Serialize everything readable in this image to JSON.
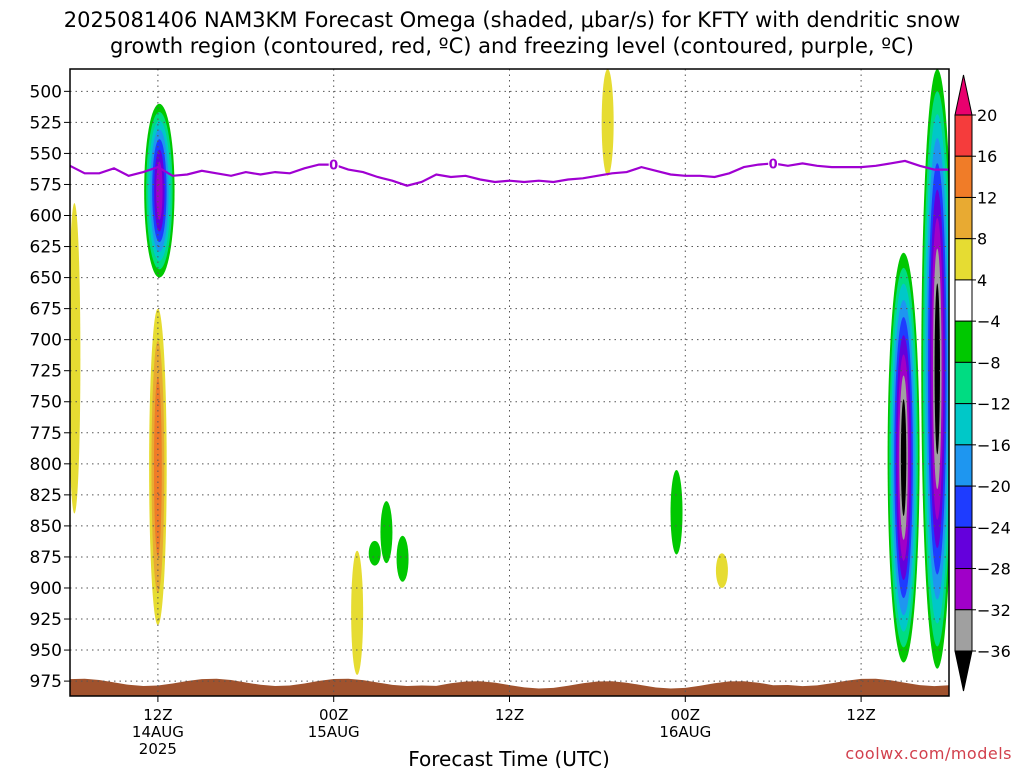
{
  "title_line1": "2025081406 NAM3KM Forecast Omega (shaded, μbar/s) for KFTY with dendritic snow",
  "title_line2": "growth region (contoured, red, ºC) and freezing level (contoured, purple, ºC)",
  "credit": "coolwx.com/models",
  "chart_data": {
    "type": "heatmap",
    "title": "2025081406 NAM3KM Forecast Omega (shaded, μbar/s) for KFTY with dendritic snow growth region (contoured, red, ºC) and freezing level (contoured, purple, ºC)",
    "xlabel": "Forecast Time (UTC)",
    "ylabel": "",
    "y_axis": {
      "reversed": true,
      "ylim": [
        987,
        482
      ],
      "ticks": [
        500,
        525,
        550,
        575,
        600,
        625,
        650,
        675,
        700,
        725,
        750,
        775,
        800,
        825,
        850,
        875,
        900,
        925,
        950,
        975
      ]
    },
    "x_axis": {
      "range_hours": [
        6,
        66
      ],
      "ticks": [
        {
          "hour": 12,
          "label": [
            "12Z",
            "14AUG",
            "2025"
          ]
        },
        {
          "hour": 24,
          "label": [
            "00Z",
            "15AUG"
          ]
        },
        {
          "hour": 36,
          "label": [
            "12Z"
          ]
        },
        {
          "hour": 48,
          "label": [
            "00Z",
            "16AUG"
          ]
        },
        {
          "hour": 60,
          "label": [
            "12Z"
          ]
        }
      ]
    },
    "grid": true,
    "colorbar": {
      "labels": [
        "20",
        "16",
        "12",
        "8",
        "4",
        "−4",
        "−8",
        "−12",
        "−16",
        "−20",
        "−24",
        "−28",
        "−32",
        "−36"
      ],
      "colors": [
        "#e8006e",
        "#f53c3c",
        "#f07c28",
        "#e8aa32",
        "#e6dc32",
        "#ffffff",
        "#00c800",
        "#00dc82",
        "#00c8c8",
        "#1e96f0",
        "#1e3cff",
        "#6400dc",
        "#a000c8",
        "#a0a0a0",
        "#000000"
      ]
    },
    "freezing_level": {
      "label": "0",
      "color": "#a000d2",
      "points": [
        [
          6,
          560
        ],
        [
          7,
          566
        ],
        [
          8,
          566
        ],
        [
          9,
          562
        ],
        [
          10,
          568
        ],
        [
          11,
          565
        ],
        [
          12,
          561
        ],
        [
          13,
          568
        ],
        [
          14,
          567
        ],
        [
          15,
          564
        ],
        [
          16,
          566
        ],
        [
          17,
          568
        ],
        [
          18,
          565
        ],
        [
          19,
          567
        ],
        [
          20,
          565
        ],
        [
          21,
          566
        ],
        [
          22,
          562
        ],
        [
          23,
          559
        ],
        [
          24,
          559
        ],
        [
          25,
          563
        ],
        [
          26,
          565
        ],
        [
          27,
          569
        ],
        [
          28,
          572
        ],
        [
          29,
          576
        ],
        [
          30,
          573
        ],
        [
          31,
          567
        ],
        [
          32,
          569
        ],
        [
          33,
          568
        ],
        [
          34,
          571
        ],
        [
          35,
          573
        ],
        [
          36,
          572
        ],
        [
          37,
          573
        ],
        [
          38,
          572
        ],
        [
          39,
          573
        ],
        [
          40,
          571
        ],
        [
          41,
          570
        ],
        [
          42,
          568
        ],
        [
          43,
          566
        ],
        [
          44,
          565
        ],
        [
          45,
          561
        ],
        [
          46,
          564
        ],
        [
          47,
          567
        ],
        [
          48,
          568
        ],
        [
          49,
          568
        ],
        [
          50,
          569
        ],
        [
          51,
          566
        ],
        [
          52,
          561
        ],
        [
          53,
          559
        ],
        [
          54,
          558
        ],
        [
          55,
          560
        ],
        [
          56,
          558
        ],
        [
          57,
          560
        ],
        [
          58,
          561
        ],
        [
          59,
          561
        ],
        [
          60,
          561
        ],
        [
          61,
          560
        ],
        [
          62,
          558
        ],
        [
          63,
          556
        ],
        [
          64,
          560
        ],
        [
          65,
          563
        ],
        [
          66,
          563
        ]
      ]
    },
    "omega_features": [
      {
        "value": -36,
        "hour": 12.1,
        "p_top": 510,
        "p_bottom": 650,
        "peak": -28
      },
      {
        "value": 16,
        "hour": 12.0,
        "p_top": 675,
        "p_bottom": 930,
        "peak": 14
      },
      {
        "value": 6,
        "hour": 6.3,
        "p_top": 590,
        "p_bottom": 840,
        "peak": 6
      },
      {
        "value": 6,
        "hour": 25.6,
        "p_top": 870,
        "p_bottom": 970,
        "peak": 6
      },
      {
        "value": -6,
        "hour": 27.6,
        "p_top": 830,
        "p_bottom": 880,
        "peak": -6
      },
      {
        "value": -6,
        "hour": 28.7,
        "p_top": 858,
        "p_bottom": 895,
        "peak": -6
      },
      {
        "value": -6,
        "hour": 26.8,
        "p_top": 862,
        "p_bottom": 882,
        "peak": -6
      },
      {
        "value": 6,
        "hour": 42.7,
        "p_top": 482,
        "p_bottom": 568,
        "peak": 6
      },
      {
        "value": -6,
        "hour": 47.4,
        "p_top": 805,
        "p_bottom": 873,
        "peak": -6
      },
      {
        "value": 6,
        "hour": 50.5,
        "p_top": 872,
        "p_bottom": 900,
        "peak": 6
      },
      {
        "value": -36,
        "hour": 62.9,
        "p_top": 630,
        "p_bottom": 960,
        "peak": -36
      },
      {
        "value": -20,
        "hour": 65.2,
        "p_top": 482,
        "p_bottom": 965,
        "peak": -36
      }
    ],
    "terrain_color": "#a0522d"
  },
  "colors": {
    "axis": "#000000",
    "grid": "#555555",
    "credit": "#d2404d"
  }
}
